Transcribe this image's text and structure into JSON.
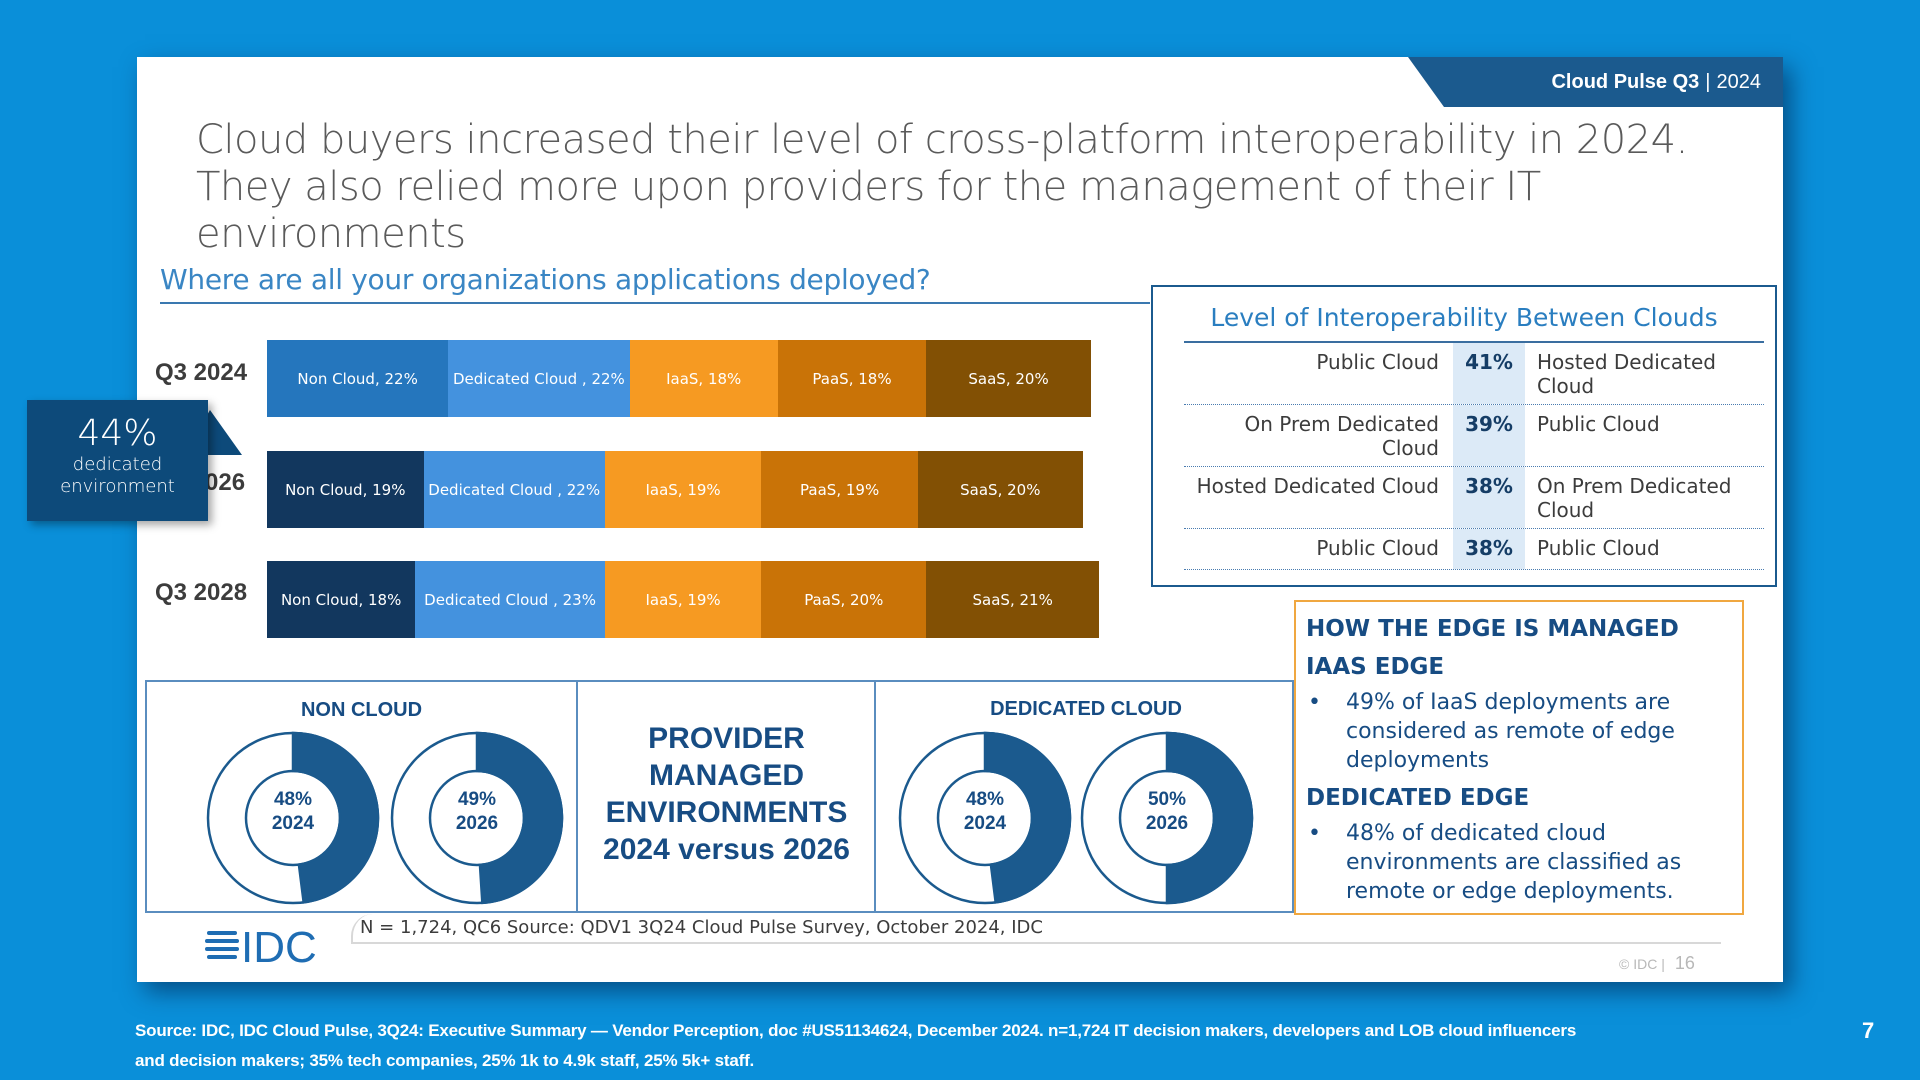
{
  "header": {
    "brand": "Cloud Pulse Q3",
    "separator": "|",
    "year": "2024"
  },
  "title": "Cloud buyers increased their level of cross-platform interoperability in 2024. They also relied more upon providers for the management of their IT environments",
  "question": "Where are all your organizations applications deployed?",
  "callout": {
    "value": "44%",
    "line1": "dedicated",
    "line2": "environment"
  },
  "colors": {
    "non_cloud_2024": "#2576bd",
    "non_cloud": "#12375e",
    "dedicated_cloud": "#4492de",
    "iaas": "#f69a22",
    "paas": "#c97307",
    "saas": "#825004",
    "accent": "#1b5a8e",
    "edge_border": "#f0a740"
  },
  "chart_data": {
    "type": "bar",
    "orientation": "horizontal-stacked",
    "title": "Where are all your organizations applications deployed?",
    "categories": [
      "Q3 2024",
      "Q3 2026",
      "Q3 2028"
    ],
    "series": [
      {
        "name": "Non Cloud",
        "values": [
          22,
          19,
          18
        ]
      },
      {
        "name": "Dedicated Cloud",
        "values": [
          22,
          22,
          23
        ]
      },
      {
        "name": "IaaS",
        "values": [
          18,
          19,
          19
        ]
      },
      {
        "name": "PaaS",
        "values": [
          18,
          19,
          20
        ]
      },
      {
        "name": "SaaS",
        "values": [
          20,
          20,
          21
        ]
      }
    ],
    "data_labels": [
      [
        "Non Cloud, 22%",
        "Dedicated Cloud , 22%",
        "IaaS, 18%",
        "PaaS, 18%",
        "SaaS, 20%"
      ],
      [
        "Non Cloud, 19%",
        "Dedicated Cloud , 22%",
        "IaaS, 19%",
        "PaaS, 19%",
        "SaaS, 20%"
      ],
      [
        "Non Cloud, 18%",
        "Dedicated Cloud , 23%",
        "IaaS, 19%",
        "PaaS, 20%",
        "SaaS, 21%"
      ]
    ],
    "row_labels_visible": [
      "Q3 2024",
      "026",
      "Q3 2028"
    ],
    "xlabel": "",
    "ylabel": "",
    "unit": "%"
  },
  "interop": {
    "title": "Level of Interoperability Between Clouds",
    "rows": [
      {
        "left": "Public Cloud",
        "value": "41%",
        "right": "Hosted Dedicated Cloud"
      },
      {
        "left": "On Prem Dedicated Cloud",
        "value": "39%",
        "right": "Public Cloud"
      },
      {
        "left": "Hosted Dedicated Cloud",
        "value": "38%",
        "right": "On Prem Dedicated Cloud"
      },
      {
        "left": "Public Cloud",
        "value": "38%",
        "right": "Public Cloud"
      }
    ]
  },
  "donuts": {
    "non_cloud_title": "NON CLOUD",
    "dedicated_title": "DEDICATED CLOUD",
    "center_title": [
      "PROVIDER",
      "MANAGED",
      "ENVIRONMENTS",
      "2024 versus 2026"
    ],
    "items": [
      {
        "group": "non_cloud",
        "pct": 48,
        "label": "48%",
        "year": "2024"
      },
      {
        "group": "non_cloud",
        "pct": 49,
        "label": "49%",
        "year": "2026"
      },
      {
        "group": "dedicated",
        "pct": 48,
        "label": "48%",
        "year": "2024"
      },
      {
        "group": "dedicated",
        "pct": 50,
        "label": "50%",
        "year": "2026"
      }
    ]
  },
  "edge": {
    "title": "HOW THE EDGE IS MANAGED",
    "iaas_heading": "IAAS EDGE",
    "iaas_bullet": "49% of IaaS deployments are considered as remote of edge deployments",
    "dedicated_heading": "DEDICATED EDGE",
    "dedicated_bullet": "48% of dedicated cloud environments are classified as remote or edge deployments."
  },
  "footer": {
    "note": "N = 1,724, QC6 Source: QDV1 3Q24 Cloud Pulse Survey, October 2024, IDC",
    "logo": "IDC",
    "copyright": "© IDC |",
    "inner_page": "16"
  },
  "source": "Source:  IDC, IDC Cloud Pulse, 3Q24: Executive Summary — Vendor Perception, doc #US51134624, December 2024. n=1,724 IT decision makers, developers and LOB cloud influencers and decision makers; 35% tech companies, 25% 1k to 4.9k staff, 25% 5k+ staff.",
  "page_number": "7",
  "bullet_glyph": "•"
}
